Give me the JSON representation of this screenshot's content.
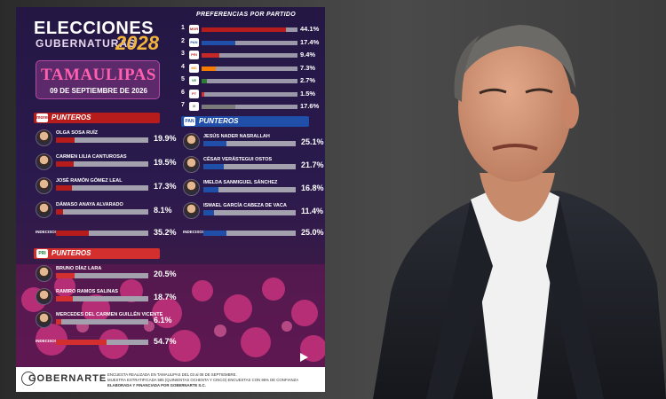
{
  "header": {
    "title_line1": "ELECCIONES",
    "title_line2": "GUBERNATURAS",
    "year": "2028",
    "state": "TAMAULIPAS",
    "date": "09 DE SEPTIEMBRE DE 2026"
  },
  "preferences": {
    "title": "PREFERENCIAS POR PARTIDO",
    "rows": [
      {
        "num": "1",
        "logo": "morena-logo",
        "color": "#b71c1c",
        "value": 44.1,
        "label": "44.1%"
      },
      {
        "num": "2",
        "logo": "pan-logo",
        "color": "#1f4fa8",
        "value": 17.4,
        "label": "17.4%"
      },
      {
        "num": "3",
        "logo": "pri-logo",
        "color": "#c62828",
        "value": 9.4,
        "label": "9.4%"
      },
      {
        "num": "4",
        "logo": "mc-logo",
        "color": "#f57c00",
        "value": 7.3,
        "label": "7.3%"
      },
      {
        "num": "5",
        "logo": "pvem-logo",
        "color": "#2e7d32",
        "value": 2.7,
        "label": "2.7%"
      },
      {
        "num": "6",
        "logo": "pt-logo",
        "color": "#d32f2f",
        "value": 1.5,
        "label": "1.5%"
      },
      {
        "num": "7",
        "logo": "none-icon",
        "color": "#7a7a7a",
        "value": 17.6,
        "label": "17.6%"
      }
    ]
  },
  "morena": {
    "section_label": "PUNTEROS",
    "logo_text": "morena",
    "head_color": "#b71c1c",
    "candidates": [
      {
        "name": "OLGA SOSA RUÍZ",
        "value": 19.9,
        "label": "19.9%"
      },
      {
        "name": "CARMEN LILIA CANTUROSAS",
        "value": 19.5,
        "label": "19.5%"
      },
      {
        "name": "JOSÉ RAMÓN GÓMEZ LEAL",
        "value": 17.3,
        "label": "17.3%"
      },
      {
        "name": "DÁMASO ANAYA ALVARADO",
        "value": 8.1,
        "label": "8.1%"
      }
    ],
    "undecided_label": "INDECISOS",
    "undecided_value": 35.2,
    "undecided_text": "35.2%"
  },
  "pan": {
    "section_label": "PUNTEROS",
    "logo_text": "PAN",
    "head_color": "#1f4fa8",
    "candidates": [
      {
        "name": "JESÚS NADER NASRALLAH",
        "value": 25.1,
        "label": "25.1%"
      },
      {
        "name": "CÉSAR VERÁSTEGUI OSTOS",
        "value": 21.7,
        "label": "21.7%"
      },
      {
        "name": "IMELDA SANMIGUEL SÁNCHEZ",
        "value": 16.8,
        "label": "16.8%"
      },
      {
        "name": "ISMAEL GARCÍA CABEZA DE VACA",
        "value": 11.4,
        "label": "11.4%"
      }
    ],
    "undecided_label": "INDECISOS",
    "undecided_value": 25.0,
    "undecided_text": "25.0%"
  },
  "pri": {
    "section_label": "PUNTEROS",
    "logo_text": "PRI",
    "head_color": "#d32f2f",
    "candidates": [
      {
        "name": "BRUNO DÍAZ LARA",
        "value": 20.5,
        "label": "20.5%"
      },
      {
        "name": "RAMIRO RAMOS SALINAS",
        "value": 18.7,
        "label": "18.7%"
      },
      {
        "name": "MERCEDES DEL CARMEN GUILLÉN VICENTE",
        "value": 6.1,
        "label": "6.1%"
      }
    ],
    "undecided_label": "INDECISOS",
    "undecided_value": 54.7,
    "undecided_text": "54.7%"
  },
  "footer": {
    "brand": "GOBERNARTE",
    "line1": "ENCUESTA REALIZADA EN TAMAULIPAS DEL 03 al 08 DE SEPTIEMBRE.",
    "line2": "MUESTRA ESTRATIFICADA 585 (QUINIENTAS OCHENTA Y CINCO) ENCUESTAS CON 95% DE CONFIANZA",
    "line3": "ELABORADA Y FINANCIADA POR GOBERNARTE S.C."
  },
  "chart_data": [
    {
      "type": "bar",
      "title": "PREFERENCIAS POR PARTIDO",
      "categories": [
        "1",
        "2",
        "3",
        "4",
        "5",
        "6",
        "7"
      ],
      "values": [
        44.1,
        17.4,
        9.4,
        7.3,
        2.7,
        1.5,
        17.6
      ]
    },
    {
      "type": "bar",
      "title": "PUNTEROS",
      "categories": [
        "OLGA SOSA RUÍZ",
        "CARMEN LILIA CANTUROSAS",
        "JOSÉ RAMÓN GÓMEZ LEAL",
        "DÁMASO ANAYA ALVARADO",
        "INDECISOS"
      ],
      "values": [
        19.9,
        19.5,
        17.3,
        8.1,
        35.2
      ]
    },
    {
      "type": "bar",
      "title": "PUNTEROS",
      "categories": [
        "JESÚS NADER NASRALLAH",
        "CÉSAR VERÁSTEGUI OSTOS",
        "IMELDA SANMIGUEL SÁNCHEZ",
        "ISMAEL GARCÍA CABEZA DE VACA",
        "INDECISOS"
      ],
      "values": [
        25.1,
        21.7,
        16.8,
        11.4,
        25.0
      ]
    },
    {
      "type": "bar",
      "title": "PUNTEROS",
      "categories": [
        "BRUNO DÍAZ LARA",
        "RAMIRO RAMOS SALINAS",
        "MERCEDES DEL CARMEN GUILLÉN VICENTE",
        "INDECISOS"
      ],
      "values": [
        20.5,
        18.7,
        6.1,
        54.7
      ]
    }
  ]
}
